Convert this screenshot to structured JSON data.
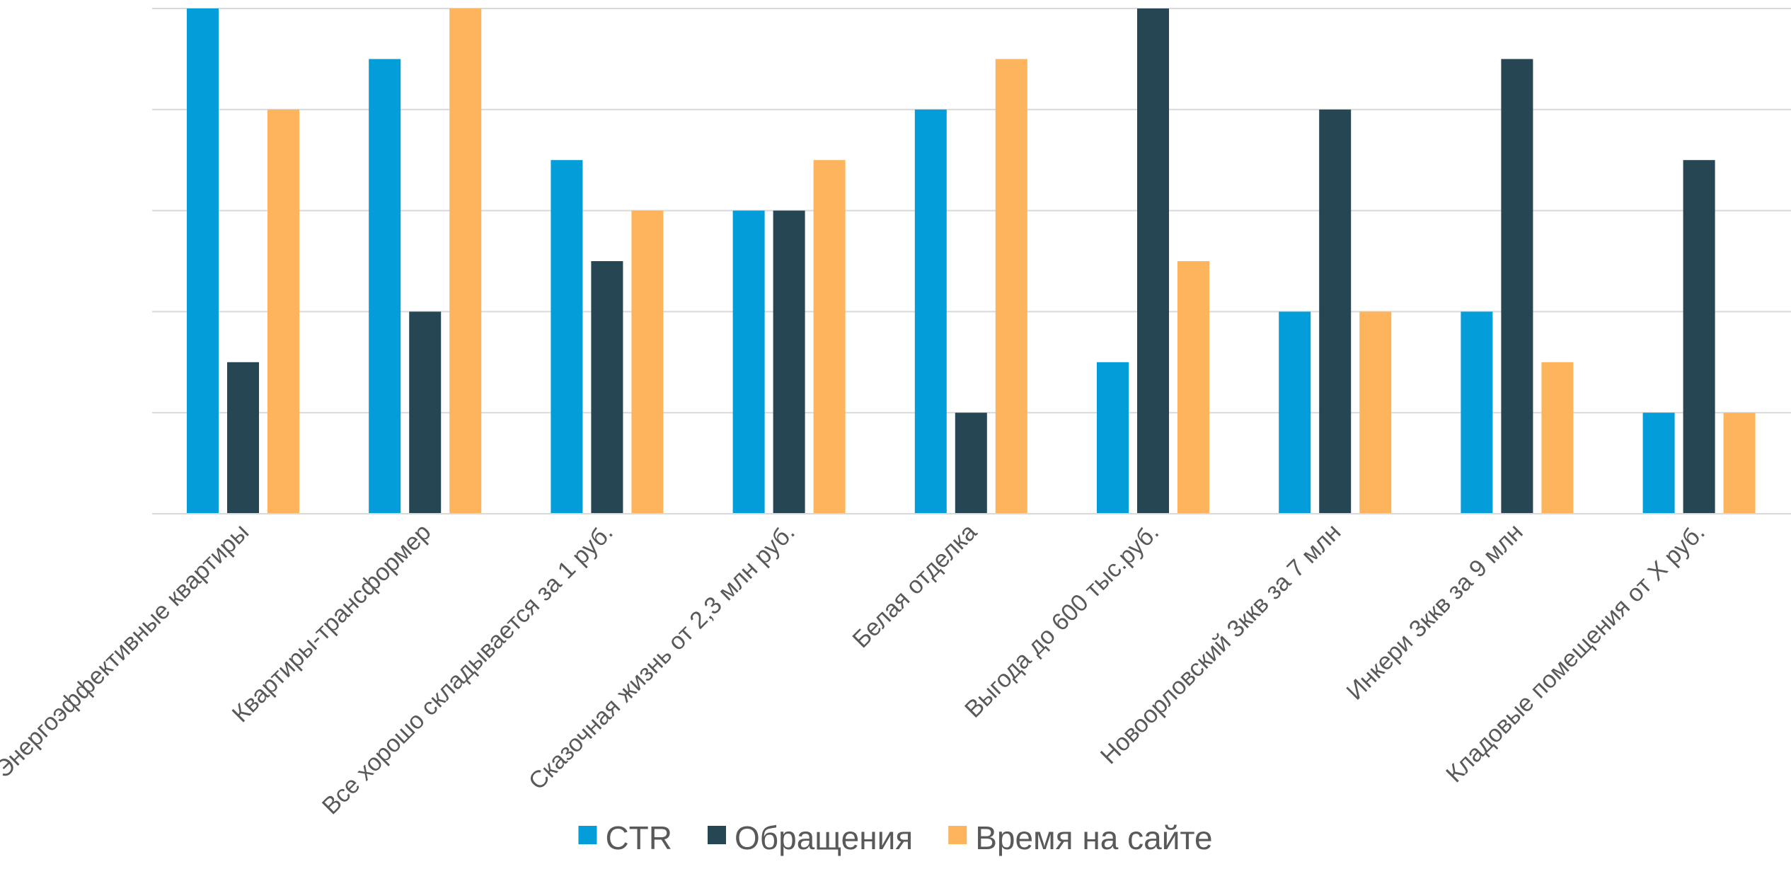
{
  "chart_data": {
    "type": "bar",
    "categories": [
      "Энергоэффективные квартиры",
      "Квартиры-трансформер",
      "Все хорошо складывается за 1 руб.",
      "Сказочная жизнь от 2,3 млн руб.",
      "Белая отделка",
      "Выгода до 600 тыс.руб.",
      "Новоорловский  3ккв за 7 млн",
      "Инкери 3ккв за 9 млн",
      "Кладовые помещения от Х руб."
    ],
    "series": [
      {
        "name": "CTR",
        "color": "#039ED9",
        "values": [
          5,
          4.5,
          3.5,
          3,
          4,
          1.5,
          2,
          2,
          1
        ]
      },
      {
        "name": "Обращения",
        "color": "#264653",
        "values": [
          1.5,
          2,
          2.5,
          3,
          1,
          5,
          4,
          4.5,
          3.5
        ]
      },
      {
        "name": "Время на сайте",
        "color": "#FDB45C",
        "values": [
          4,
          5,
          3,
          3.5,
          4.5,
          2.5,
          2,
          1.5,
          1
        ]
      }
    ],
    "ylim": [
      0,
      5
    ],
    "ytick_step": 1,
    "grid": true,
    "legend": "bottom"
  }
}
